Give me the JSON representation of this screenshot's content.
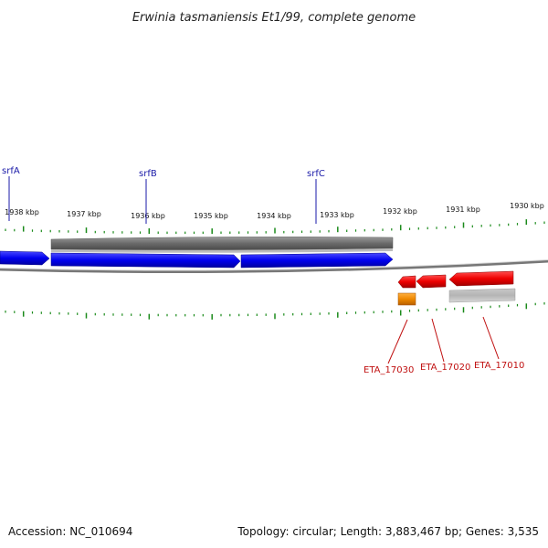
{
  "title": "Erwinia tasmaniensis Et1/99, complete genome",
  "footer": {
    "accession": "Accession: NC_010694",
    "summary": "Topology: circular; Length: 3,883,467 bp; Genes: 3,535"
  },
  "scale_labels": [
    "1938 kbp",
    "1937 kbp",
    "1936 kbp",
    "1935 kbp",
    "1934 kbp",
    "1933 kbp",
    "1932 kbp",
    "1931 kbp",
    "1930 kbp"
  ],
  "genes_top": [
    {
      "label": "srfA",
      "color": "#0000ee"
    },
    {
      "label": "srfB",
      "color": "#0000ee"
    },
    {
      "label": "srfC",
      "color": "#0000ee"
    }
  ],
  "genes_bottom": [
    {
      "label": "ETA_17030",
      "color": "#ee0000"
    },
    {
      "label": "ETA_17020",
      "color": "#ee0000"
    },
    {
      "label": "ETA_17010",
      "color": "#ee0000"
    }
  ],
  "colors": {
    "forward_gene": "#0000ee",
    "reverse_gene": "#ee0000",
    "cds_gray": "#6e6e6e",
    "rna_orange": "#ee8800",
    "backbone": "#777777",
    "ticks": "#1a8a1a"
  }
}
